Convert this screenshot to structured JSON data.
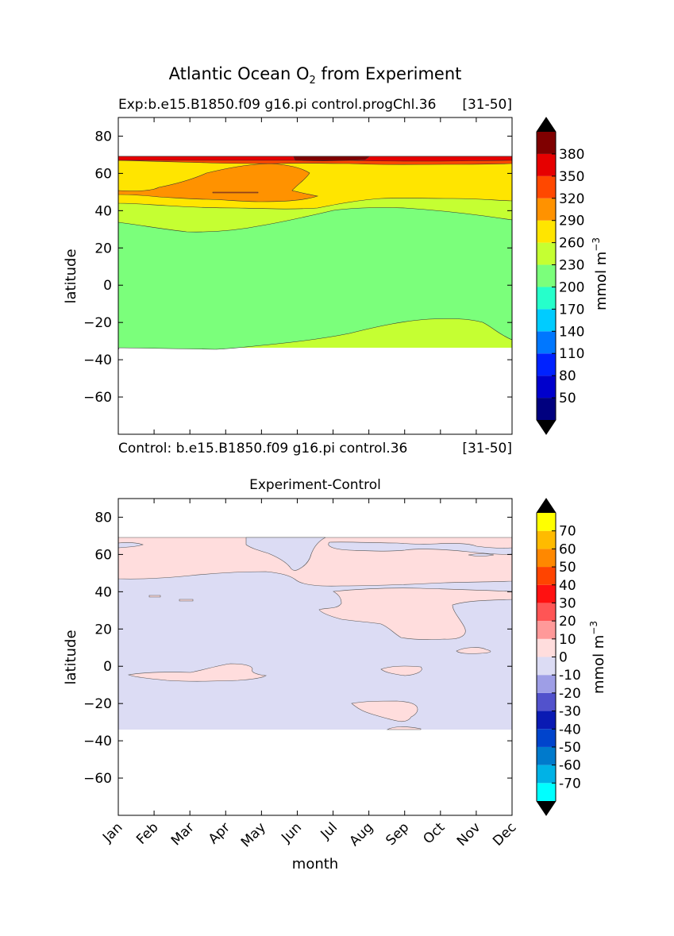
{
  "figure": {
    "title_main": "Atlantic Ocean O",
    "title_sub": "2",
    "title_rest": " from Experiment"
  },
  "chart_data": [
    {
      "type": "contour",
      "subtitle_left": "Exp:b.e15.B1850.f09 g16.pi control.progChl.36",
      "subtitle_right": "[31-50]",
      "xlabel": "",
      "ylabel": "latitude",
      "ylim": [
        -80,
        90
      ],
      "yticks": [
        80,
        60,
        40,
        20,
        0,
        -20,
        -40,
        -60
      ],
      "x_categories": [
        "Jan",
        "Feb",
        "Mar",
        "Apr",
        "May",
        "Jun",
        "Jul",
        "Aug",
        "Sep",
        "Oct",
        "Nov",
        "Dec"
      ],
      "data_lat_range": [
        -34,
        69
      ],
      "colorbar": {
        "label": "mmol m",
        "label_sup": "−3",
        "levels": [
          20,
          50,
          80,
          110,
          140,
          170,
          200,
          230,
          260,
          290,
          320,
          350,
          380,
          410
        ],
        "tick_labels": [
          "50",
          "80",
          "110",
          "140",
          "170",
          "200",
          "230",
          "260",
          "290",
          "320",
          "350",
          "380"
        ],
        "colors": [
          "#00007f",
          "#0000cc",
          "#0022ff",
          "#0077ff",
          "#00ccff",
          "#26ffcb",
          "#7bff7b",
          "#c5ff32",
          "#ffe500",
          "#ff9200",
          "#ff4800",
          "#e60000",
          "#7f0000"
        ],
        "extend_colors": [
          "#000000",
          "#000000"
        ]
      },
      "regions": [
        {
          "level": 230,
          "lat_south_by_month": [
            -32,
            -34,
            -34,
            -33,
            -31,
            -29,
            -27,
            -24,
            -20,
            -18,
            -19,
            -28
          ],
          "lat_north_by_month": [
            34,
            30,
            29,
            29,
            31,
            34,
            37,
            40,
            41,
            41,
            40,
            38
          ]
        },
        {
          "level": 260,
          "lat_north_by_month": [
            44,
            43,
            42,
            41,
            42,
            43,
            44,
            46,
            47,
            46,
            45,
            45
          ]
        },
        {
          "level": 290,
          "lat_north_by_month": [
            51,
            51,
            52,
            55,
            57,
            55,
            51,
            49,
            48,
            48,
            48,
            48
          ]
        },
        {
          "level": 320,
          "lat_north_by_month": [
            69,
            68,
            65,
            63,
            64,
            64,
            64,
            64,
            64,
            64,
            64,
            64
          ]
        }
      ]
    },
    {
      "type": "contour",
      "subtitle_left": "Control: b.e15.B1850.f09 g16.pi control.36",
      "subtitle_right": "[31-50]",
      "title": "Experiment-Control",
      "xlabel": "month",
      "ylabel": "latitude",
      "ylim": [
        -80,
        90
      ],
      "yticks": [
        80,
        60,
        40,
        20,
        0,
        -20,
        -40,
        -60
      ],
      "x_categories": [
        "Jan",
        "Feb",
        "Mar",
        "Apr",
        "May",
        "Jun",
        "Jul",
        "Aug",
        "Sep",
        "Oct",
        "Nov",
        "Dec"
      ],
      "data_lat_range": [
        -34,
        69
      ],
      "colorbar": {
        "label": "mmol m",
        "label_sup": "−3",
        "levels": [
          -80,
          -70,
          -60,
          -50,
          -40,
          -30,
          -20,
          -10,
          0,
          10,
          20,
          30,
          40,
          50,
          60,
          70,
          80
        ],
        "tick_labels": [
          "-70",
          "-60",
          "-50",
          "-40",
          "-30",
          "-20",
          "-10",
          "0",
          "10",
          "20",
          "30",
          "40",
          "50",
          "60",
          "70"
        ],
        "colors": [
          "#00ffff",
          "#00b2e6",
          "#007acc",
          "#0044cc",
          "#0a1ab3",
          "#5252cc",
          "#9e9ee6",
          "#dcdcf4",
          "#ffdddd",
          "#ff9999",
          "#ff5555",
          "#ff1111",
          "#ff4400",
          "#ff8800",
          "#ffbb00",
          "#ffff00"
        ],
        "extend_colors": [
          "#000000",
          "#000000"
        ]
      },
      "background_level": -10,
      "positive_patches": [
        {
          "level": 0,
          "description_lat": [
            48,
            69
          ],
          "months": [
            0,
            11
          ]
        },
        {
          "level": 0,
          "description_lat": [
            8,
            43
          ],
          "months": [
            6,
            10
          ]
        },
        {
          "level": 0,
          "description_lat": [
            -4,
            2
          ],
          "months": [
            0,
            4
          ]
        },
        {
          "level": 0,
          "description_lat": [
            -29,
            -18
          ],
          "months": [
            6.5,
            8.5
          ]
        }
      ]
    }
  ]
}
